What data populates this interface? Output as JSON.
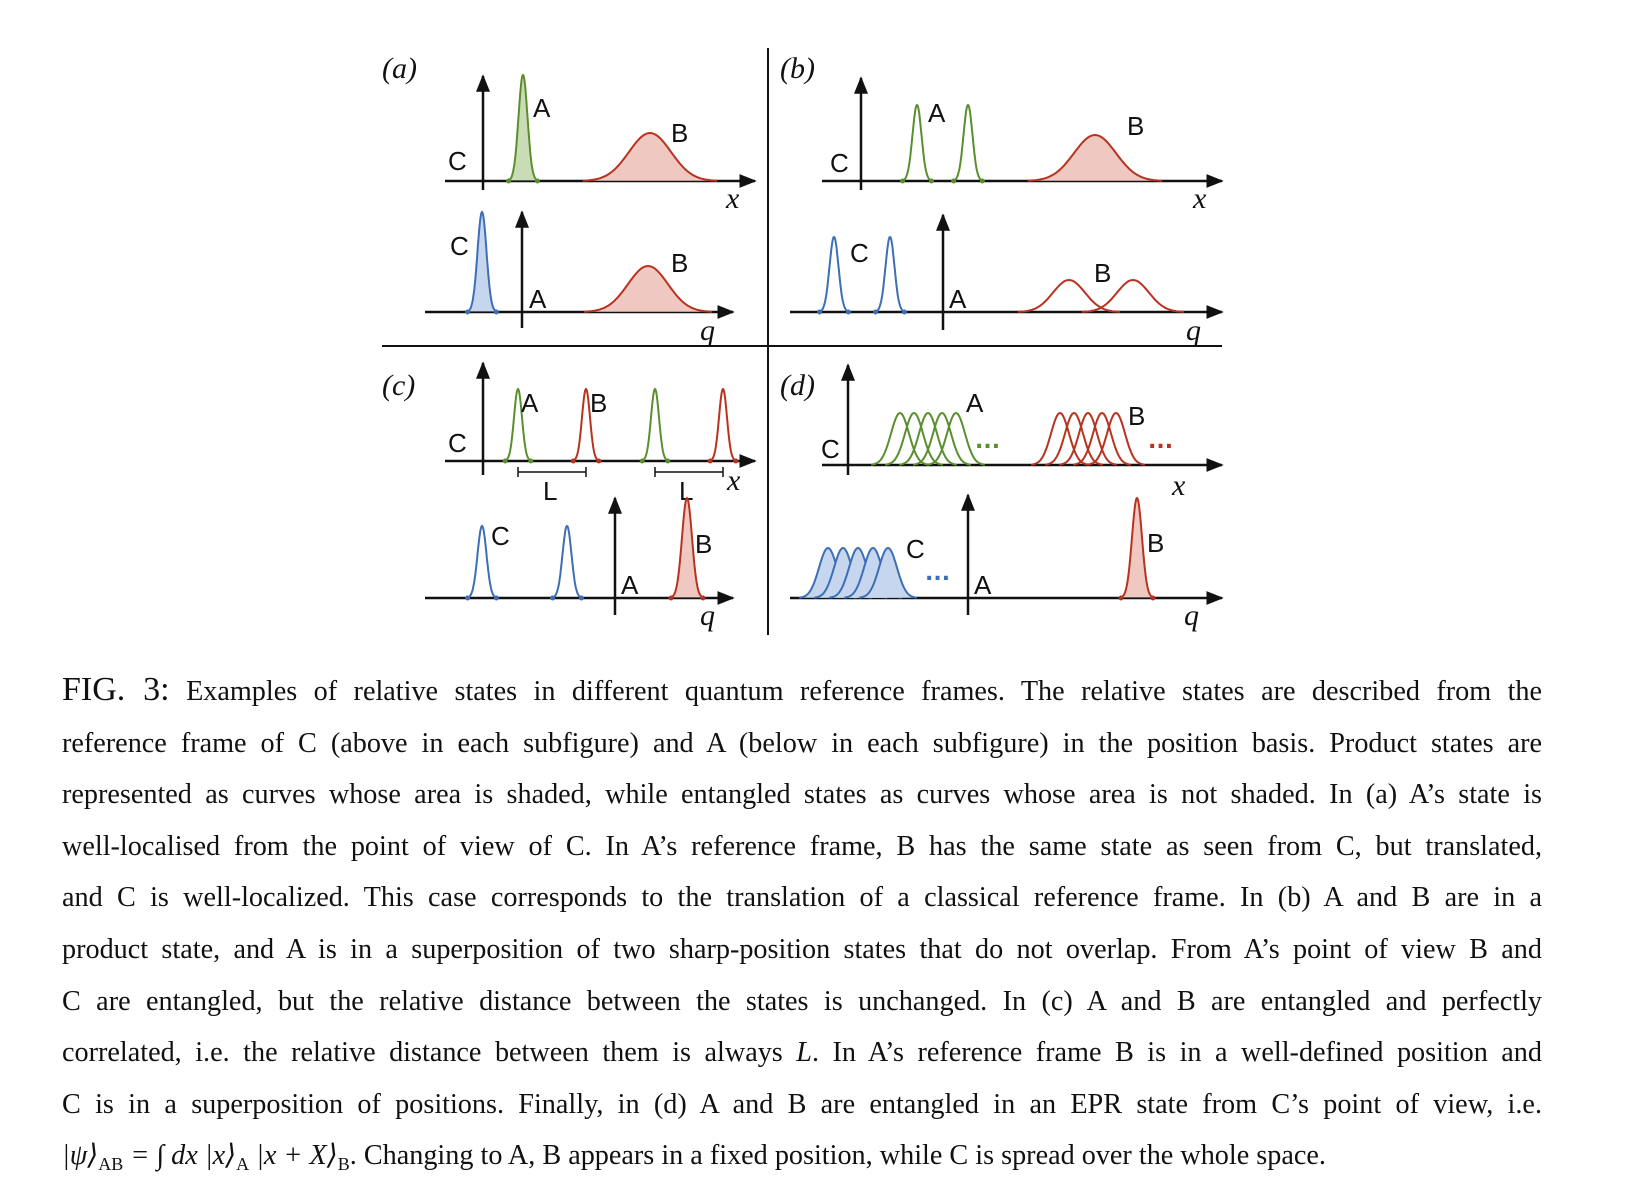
{
  "panels": {
    "a": {
      "label": "(a)"
    },
    "b": {
      "label": "(b)"
    },
    "c": {
      "label": "(c)"
    },
    "d": {
      "label": "(d)"
    }
  },
  "labels": {
    "A": "A",
    "B": "B",
    "C": "C",
    "L": "L",
    "x": "x",
    "q": "q",
    "dots": "..."
  },
  "colors": {
    "green": "#5a8f2e",
    "green_fill": "#c9dcb5",
    "red": "#b8331f",
    "red_fill": "#efc8c1",
    "blue": "#3c6fb6",
    "blue_fill": "#c5d6ee"
  },
  "caption": {
    "fig_label": "FIG. 3:",
    "lines": [
      "Examples of relative states in different quantum reference frames. The relative states are described from the",
      "reference frame of C (above in each subfigure) and A (below in each subfigure) in the position basis. Product states are",
      "represented as curves whose area is shaded, while entangled states as curves whose area is not shaded. In (a) A’s state is",
      "well-localised from the point of view of C. In A’s reference frame, B has the same state as seen from C, but translated,",
      "and C is well-localized. This case corresponds to the translation of a classical reference frame. In (b) A and B are in a",
      "product state, and A is in a superposition of two sharp-position states that do not overlap. From A’s point of view B and",
      "C are entangled, but the relative distance between the states is unchanged. In (c) A and B are entangled and perfectly"
    ],
    "line8_pre": "correlated, i.e. the relative distance between them is always ",
    "line8_math": "L",
    "line8_post": ". In A’s reference frame B is in a well-defined position and",
    "line9": "C is in a superposition of positions. Finally, in (d) A and B are entangled in an EPR state from C’s point of view, i.e.",
    "formula": "|ψ⟩",
    "formula_sub1": "AB",
    "formula_mid": " = ∫ dx |x⟩",
    "formula_sub2": "A",
    "formula_mid2": " |x + X⟩",
    "formula_sub3": "B",
    "line10_post": ". Changing to A, B appears in a fixed position, while C is spread over the whole space."
  }
}
